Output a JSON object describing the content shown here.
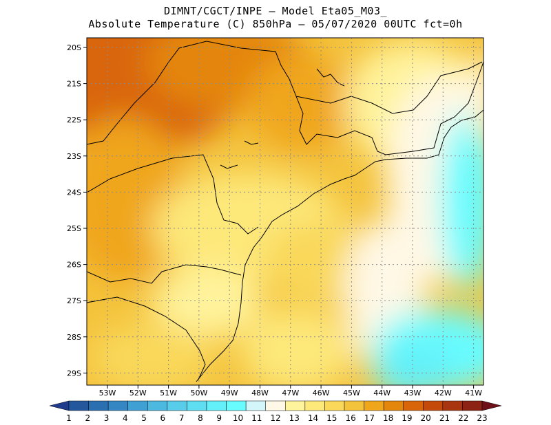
{
  "header": {
    "title_line1": "DIMNT/CGCT/INPE –  Model Eta05_M03_",
    "title_line2": "Absolute Temperature (C) 850hPa –  05/07/2020 00UTC fct=0h"
  },
  "map": {
    "lat_labels": [
      "20S",
      "21S",
      "22S",
      "23S",
      "24S",
      "25S",
      "26S",
      "27S",
      "28S",
      "29S"
    ],
    "lon_labels": [
      "53W",
      "52W",
      "51W",
      "50W",
      "49W",
      "48W",
      "47W",
      "46W",
      "45W",
      "44W",
      "43W",
      "42W",
      "41W"
    ],
    "grid": true
  },
  "colorbar": {
    "labels": [
      "1",
      "2",
      "3",
      "4",
      "5",
      "6",
      "7",
      "8",
      "9",
      "10",
      "11",
      "12",
      "13",
      "14",
      "15",
      "16",
      "17",
      "18",
      "19",
      "20",
      "21",
      "22",
      "23"
    ],
    "colors": [
      "#1f3d8c",
      "#24579c",
      "#2a6fb0",
      "#3487c2",
      "#3fa0d3",
      "#4bb9e0",
      "#58cdea",
      "#5fdef2",
      "#64f0f8",
      "#68fcff",
      "#d3f6fb",
      "#fff8e6",
      "#fff39c",
      "#fde87a",
      "#f9d85a",
      "#f4c33c",
      "#f0a61a",
      "#e4860c",
      "#d9650a",
      "#c44a0a",
      "#a83510",
      "#8c2314",
      "#6e1018"
    ]
  }
}
